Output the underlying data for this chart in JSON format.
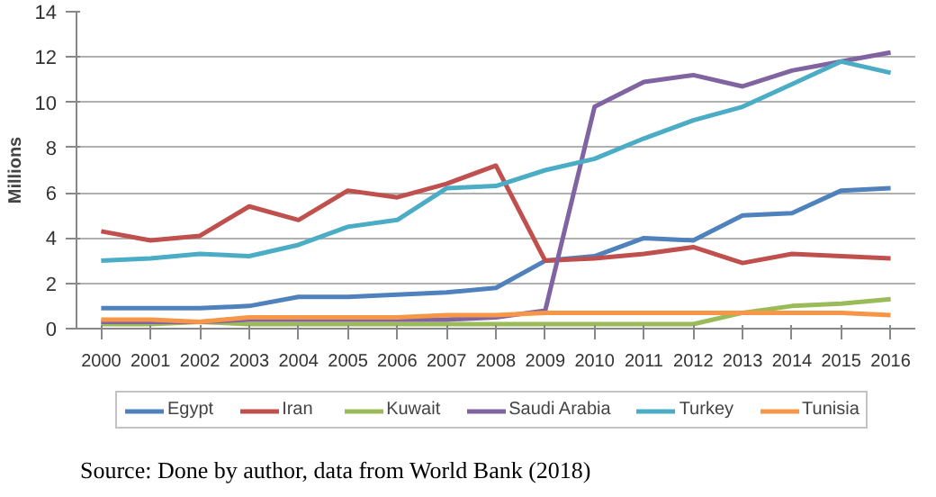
{
  "chart_data": {
    "type": "line",
    "ylabel": "Millions",
    "categories": [
      "2000",
      "2001",
      "2002",
      "2003",
      "2004",
      "2005",
      "2006",
      "2007",
      "2008",
      "2009",
      "2010",
      "2011",
      "2012",
      "2013",
      "2014",
      "2015",
      "2016"
    ],
    "series": [
      {
        "name": "Egypt",
        "color": "#4f81bd",
        "values": [
          0.9,
          0.9,
          0.9,
          1.0,
          1.4,
          1.4,
          1.5,
          1.6,
          1.8,
          3.0,
          3.2,
          4.0,
          3.9,
          5.0,
          5.1,
          6.1,
          6.2
        ]
      },
      {
        "name": "Iran",
        "color": "#c0504d",
        "values": [
          4.3,
          3.9,
          4.1,
          5.4,
          4.8,
          6.1,
          5.8,
          6.4,
          7.2,
          3.0,
          3.1,
          3.3,
          3.6,
          2.9,
          3.3,
          3.2,
          3.1
        ]
      },
      {
        "name": "Kuwait",
        "color": "#9bbb59",
        "values": [
          0.2,
          0.2,
          0.3,
          0.2,
          0.2,
          0.2,
          0.2,
          0.2,
          0.2,
          0.2,
          0.2,
          0.2,
          0.2,
          0.7,
          1.0,
          1.1,
          1.3
        ]
      },
      {
        "name": "Saudi Arabia",
        "color": "#8064a2",
        "values": [
          0.3,
          0.3,
          0.3,
          0.4,
          0.4,
          0.4,
          0.4,
          0.4,
          0.5,
          0.8,
          9.8,
          10.9,
          11.2,
          10.7,
          11.4,
          11.8,
          12.2
        ]
      },
      {
        "name": "Turkey",
        "color": "#4bacc6",
        "values": [
          3.0,
          3.1,
          3.3,
          3.2,
          3.7,
          4.5,
          4.8,
          6.2,
          6.3,
          7.0,
          7.5,
          8.4,
          9.2,
          9.8,
          10.8,
          11.8,
          11.3
        ]
      },
      {
        "name": "Tunisia",
        "color": "#f79646",
        "values": [
          0.4,
          0.4,
          0.3,
          0.5,
          0.5,
          0.5,
          0.5,
          0.6,
          0.6,
          0.7,
          0.7,
          0.7,
          0.7,
          0.7,
          0.7,
          0.7,
          0.6
        ]
      }
    ],
    "ylim": [
      0,
      14
    ],
    "yticks": [
      0,
      2,
      4,
      6,
      8,
      10,
      12,
      14
    ],
    "grid": "y",
    "legend": "bottom",
    "annotations": [
      "Source: Done by author, data from World Bank (2018)"
    ]
  }
}
